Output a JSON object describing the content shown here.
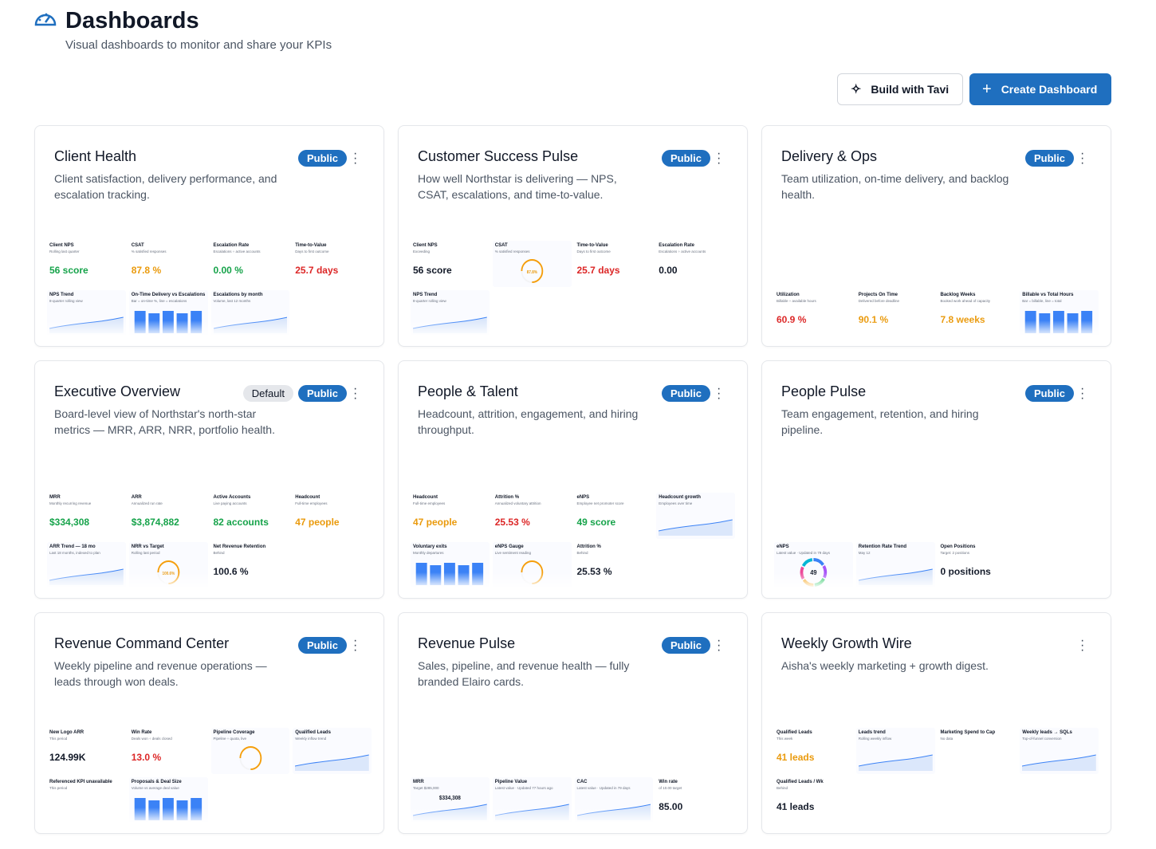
{
  "header": {
    "title": "Dashboards",
    "subtitle": "Visual dashboards to monitor and share your KPIs"
  },
  "actions": {
    "secondary": "Build with Tavi",
    "primary": "Create Dashboard"
  },
  "dashboards": [
    {
      "title": "Client Health",
      "description": "Client satisfaction, delivery performance, and escalation tracking.",
      "badges": [
        "Public"
      ],
      "widgets": [
        {
          "label": "Client NPS",
          "sub": "Rolling last quarter",
          "value": "56 score",
          "tone": "green"
        },
        {
          "label": "CSAT",
          "sub": "% satisfied responses",
          "value": "87.8 %",
          "tone": "orange"
        },
        {
          "label": "Escalation Rate",
          "sub": "Escalations ÷ active accounts",
          "value": "0.00 %",
          "tone": "green"
        },
        {
          "label": "Time-to-Value",
          "sub": "Days to first outcome",
          "value": "25.7 days",
          "tone": "red"
        },
        {
          "label": "NPS Trend",
          "sub": "8-quarter rolling view",
          "chart": "line"
        },
        {
          "label": "On-Time Delivery vs Escalations",
          "sub": "Bar = on-time %, line = escalations",
          "chart": "bars"
        },
        {
          "label": "Escalations by month",
          "sub": "Volume, last 12 months",
          "chart": "line"
        }
      ]
    },
    {
      "title": "Customer Success Pulse",
      "description": "How well Northstar is delivering — NPS, CSAT, escalations, and time-to-value.",
      "badges": [
        "Public"
      ],
      "widgets": [
        {
          "label": "Client NPS",
          "sub": "Exceeding",
          "value": "56 score",
          "tone": "dark"
        },
        {
          "label": "CSAT",
          "sub": "% satisfied responses",
          "value": "87.8%",
          "chart": "gauge",
          "tone": "orange"
        },
        {
          "label": "Time-to-Value",
          "sub": "Days to first outcome",
          "value": "25.7 days",
          "tone": "red"
        },
        {
          "label": "Escalation Rate",
          "sub": "Escalations ÷ active accounts",
          "value": "0.00",
          "tone": "dark"
        },
        {
          "label": "NPS Trend",
          "sub": "8-quarter rolling view",
          "chart": "line"
        }
      ]
    },
    {
      "title": "Delivery & Ops",
      "description": "Team utilization, on-time delivery, and backlog health.",
      "badges": [
        "Public"
      ],
      "widgets": [
        {
          "label": "Utilization",
          "sub": "Billable ÷ available hours",
          "value": "60.9 %",
          "tone": "red"
        },
        {
          "label": "Projects On Time",
          "sub": "Delivered before deadline",
          "value": "90.1 %",
          "tone": "orange"
        },
        {
          "label": "Backlog Weeks",
          "sub": "Booked work ahead of capacity",
          "value": "7.8 weeks",
          "tone": "orange"
        },
        {
          "label": "Billable vs Total Hours",
          "sub": "Bar = billable, line = total",
          "chart": "bars"
        }
      ]
    },
    {
      "title": "Executive Overview",
      "description": "Board-level view of Northstar's north-star metrics — MRR, ARR, NRR, portfolio health.",
      "badges": [
        "Default",
        "Public"
      ],
      "widgets": [
        {
          "label": "MRR",
          "sub": "Monthly recurring revenue",
          "value": "$334,308",
          "tone": "green"
        },
        {
          "label": "ARR",
          "sub": "Annualized run rate",
          "value": "$3,874,882",
          "tone": "green"
        },
        {
          "label": "Active Accounts",
          "sub": "Live paying accounts",
          "value": "82 accounts",
          "tone": "green"
        },
        {
          "label": "Headcount",
          "sub": "Full-time employees",
          "value": "47 people",
          "tone": "orange"
        },
        {
          "label": "ARR Trend — 18 mo",
          "sub": "Last 18 months, indexed to plan",
          "chart": "line"
        },
        {
          "label": "NRR vs Target",
          "sub": "Rolling last period",
          "value": "100.6%",
          "chart": "gauge",
          "tone": "orange"
        },
        {
          "label": "Net Revenue Retention",
          "sub": "Behind",
          "value": "100.6 %",
          "tone": "dark"
        }
      ]
    },
    {
      "title": "People & Talent",
      "description": "Headcount, attrition, engagement, and hiring throughput.",
      "badges": [
        "Public"
      ],
      "widgets": [
        {
          "label": "Headcount",
          "sub": "Full-time employees",
          "value": "47 people",
          "tone": "orange"
        },
        {
          "label": "Attrition %",
          "sub": "Annualized voluntary attrition",
          "value": "25.53 %",
          "tone": "red"
        },
        {
          "label": "eNPS",
          "sub": "Employee net promoter score",
          "value": "49 score",
          "tone": "green"
        },
        {
          "label": "Headcount growth",
          "sub": "Employees over time",
          "chart": "line"
        },
        {
          "label": "Voluntary exits",
          "sub": "Monthly departures",
          "chart": "bars"
        },
        {
          "label": "eNPS Gauge",
          "sub": "Live sentiment reading",
          "chart": "gauge"
        },
        {
          "label": "Attrition %",
          "sub": "Behind",
          "value": "25.53 %",
          "tone": "dark"
        }
      ]
    },
    {
      "title": "People Pulse",
      "description": "Team engagement, retention, and hiring pipeline.",
      "badges": [
        "Public"
      ],
      "widgets": [
        {
          "label": "eNPS",
          "sub": "Latest value · Updated in 79 days",
          "value": "49",
          "chart": "donut",
          "tone": "dark"
        },
        {
          "label": "Retention Rate Trend",
          "sub": "May 12",
          "chart": "line"
        },
        {
          "label": "Open Positions",
          "sub": "Target: 2 positions",
          "value": "0 positions",
          "tone": "dark"
        }
      ]
    },
    {
      "title": "Revenue Command Center",
      "description": "Weekly pipeline and revenue operations — leads through won deals.",
      "badges": [
        "Public"
      ],
      "widgets": [
        {
          "label": "New Logo ARR",
          "sub": "This period",
          "value": "124.99K",
          "tone": "dark"
        },
        {
          "label": "Win Rate",
          "sub": "Deals won ÷ deals closed",
          "value": "13.0 %",
          "tone": "red"
        },
        {
          "label": "Pipeline Coverage",
          "sub": "Pipeline ÷ quota, live",
          "chart": "gauge"
        },
        {
          "label": "Qualified Leads",
          "sub": "Weekly inflow trend",
          "chart": "line"
        },
        {
          "label": "Referenced KPI unavailable",
          "sub": "This period"
        },
        {
          "label": "Proposals & Deal Size",
          "sub": "Volume vs average deal value",
          "chart": "bars"
        }
      ]
    },
    {
      "title": "Revenue Pulse",
      "description": "Sales, pipeline, and revenue health — fully branded Elairo cards.",
      "badges": [
        "Public"
      ],
      "widgets": [
        {
          "label": "MRR",
          "sub": "Target $285,000",
          "value": "$334,308",
          "tone": "dark",
          "chart": "line"
        },
        {
          "label": "Pipeline Value",
          "sub": "Latest value · Updated 77 hours ago",
          "chart": "line"
        },
        {
          "label": "CAC",
          "sub": "Latest value · Updated in 79 days",
          "chart": "line"
        },
        {
          "label": "Win rate",
          "sub": "of 10.00 target",
          "value": "85.00",
          "tone": "dark"
        }
      ]
    },
    {
      "title": "Weekly Growth Wire",
      "description": "Aisha's weekly marketing + growth digest.",
      "badges": [],
      "widgets": [
        {
          "label": "Qualified Leads",
          "sub": "This week",
          "value": "41 leads",
          "tone": "orange"
        },
        {
          "label": "Leads trend",
          "sub": "Rolling weekly inflow",
          "chart": "line"
        },
        {
          "label": "Marketing Spend to Cap",
          "sub": "No data"
        },
        {
          "label": "Weekly leads → SQLs",
          "sub": "Top-of-funnel conversion",
          "chart": "line"
        },
        {
          "label": "Qualified Leads / Wk",
          "sub": "Behind",
          "value": "41 leads",
          "tone": "dark"
        }
      ]
    }
  ]
}
